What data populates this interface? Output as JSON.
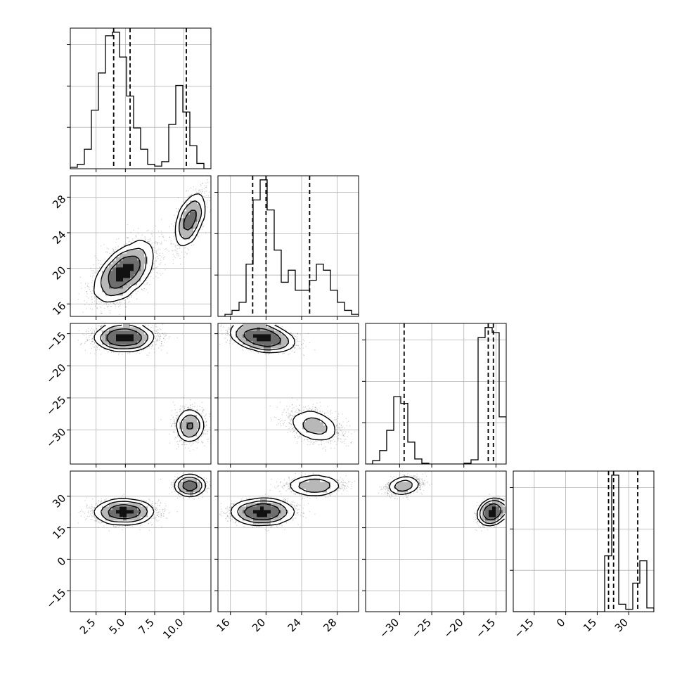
{
  "chart_data": {
    "type": "corner",
    "grid": true,
    "colors": {
      "line": "#000000",
      "grid": "#b0b0b0",
      "points": "#000000",
      "background": "#ffffff"
    },
    "params": [
      {
        "range": [
          0.3,
          12.3
        ],
        "ticks": [
          2.5,
          5.0,
          7.5,
          10.0
        ],
        "tick_labels": [
          "2.5",
          "5.0",
          "7.5",
          "10.0"
        ]
      },
      {
        "range": [
          14.6,
          30.4
        ],
        "ticks": [
          16,
          20,
          24,
          28
        ],
        "tick_labels": [
          "16",
          "20",
          "24",
          "28"
        ]
      },
      {
        "range": [
          -35.3,
          -13.4
        ],
        "ticks": [
          -30,
          -25,
          -20,
          -15
        ],
        "tick_labels": [
          "−30",
          "−25",
          "−20",
          "−15"
        ]
      },
      {
        "range": [
          -25.0,
          42.0
        ],
        "ticks": [
          -15,
          0,
          15,
          30
        ],
        "tick_labels": [
          "−15",
          "0",
          "15",
          "30"
        ]
      }
    ],
    "quantiles": [
      [
        4.0,
        5.4,
        10.2
      ],
      [
        18.5,
        20.0,
        24.9
      ],
      [
        -29.3,
        -16.2,
        -15.4
      ],
      [
        20.4,
        22.8,
        34.3
      ]
    ],
    "histograms": [
      {
        "bin_edges": [
          0.3,
          0.9,
          1.5,
          2.1,
          2.7,
          3.3,
          3.9,
          4.5,
          5.1,
          5.7,
          6.3,
          6.9,
          7.5,
          8.1,
          8.7,
          9.3,
          9.9,
          10.5,
          11.1,
          11.7,
          12.3
        ],
        "counts": [
          0.8,
          2.5,
          11,
          33,
          54,
          75,
          77,
          63,
          41,
          23,
          11,
          2.5,
          1.5,
          4,
          25,
          47,
          32,
          13,
          3,
          0
        ]
      },
      {
        "bin_edges": [
          14.6,
          15.39,
          16.18,
          16.97,
          17.76,
          18.55,
          19.34,
          20.13,
          20.92,
          21.71,
          22.5,
          23.29,
          24.08,
          24.87,
          25.66,
          26.45,
          27.24,
          28.03,
          28.82,
          29.61,
          30.4
        ],
        "counts": [
          0,
          1,
          3,
          7,
          26,
          58,
          68,
          53,
          33,
          17,
          23,
          13,
          13,
          18,
          26,
          23,
          13,
          7,
          3,
          1
        ]
      },
      {
        "bin_edges": [
          -35.3,
          -34.21,
          -33.11,
          -32.02,
          -30.92,
          -29.83,
          -28.73,
          -27.64,
          -26.54,
          -25.45,
          -24.35,
          -23.26,
          -22.16,
          -21.07,
          -19.97,
          -18.88,
          -17.78,
          -16.69,
          -15.59,
          -14.5,
          -13.4
        ],
        "counts": [
          0,
          2,
          8,
          20,
          40,
          36,
          13,
          3,
          0.5,
          0,
          0,
          0,
          0,
          0,
          0.5,
          2.5,
          75,
          81,
          78,
          28
        ]
      },
      {
        "bin_edges": [
          -25,
          -21.65,
          -18.3,
          -14.95,
          -11.6,
          -8.25,
          -4.9,
          -1.55,
          1.8,
          5.15,
          8.5,
          11.85,
          15.2,
          18.55,
          21.9,
          25.25,
          28.6,
          31.95,
          35.3,
          38.65,
          42
        ],
        "counts": [
          0,
          0,
          0,
          0,
          0,
          0,
          0,
          0,
          0,
          0,
          0,
          0,
          0,
          45,
          110,
          6,
          2,
          23,
          41,
          3
        ]
      }
    ],
    "components": [
      {
        "weight": 0.72,
        "mean": [
          4.9,
          19.6,
          -15.6,
          22.5
        ],
        "sd": [
          1.2,
          1.6,
          0.9,
          2.5
        ]
      },
      {
        "weight": 0.28,
        "mean": [
          10.5,
          25.4,
          -29.3,
          35.0
        ],
        "sd": [
          0.6,
          1.5,
          1.3,
          2.0
        ]
      }
    ]
  }
}
